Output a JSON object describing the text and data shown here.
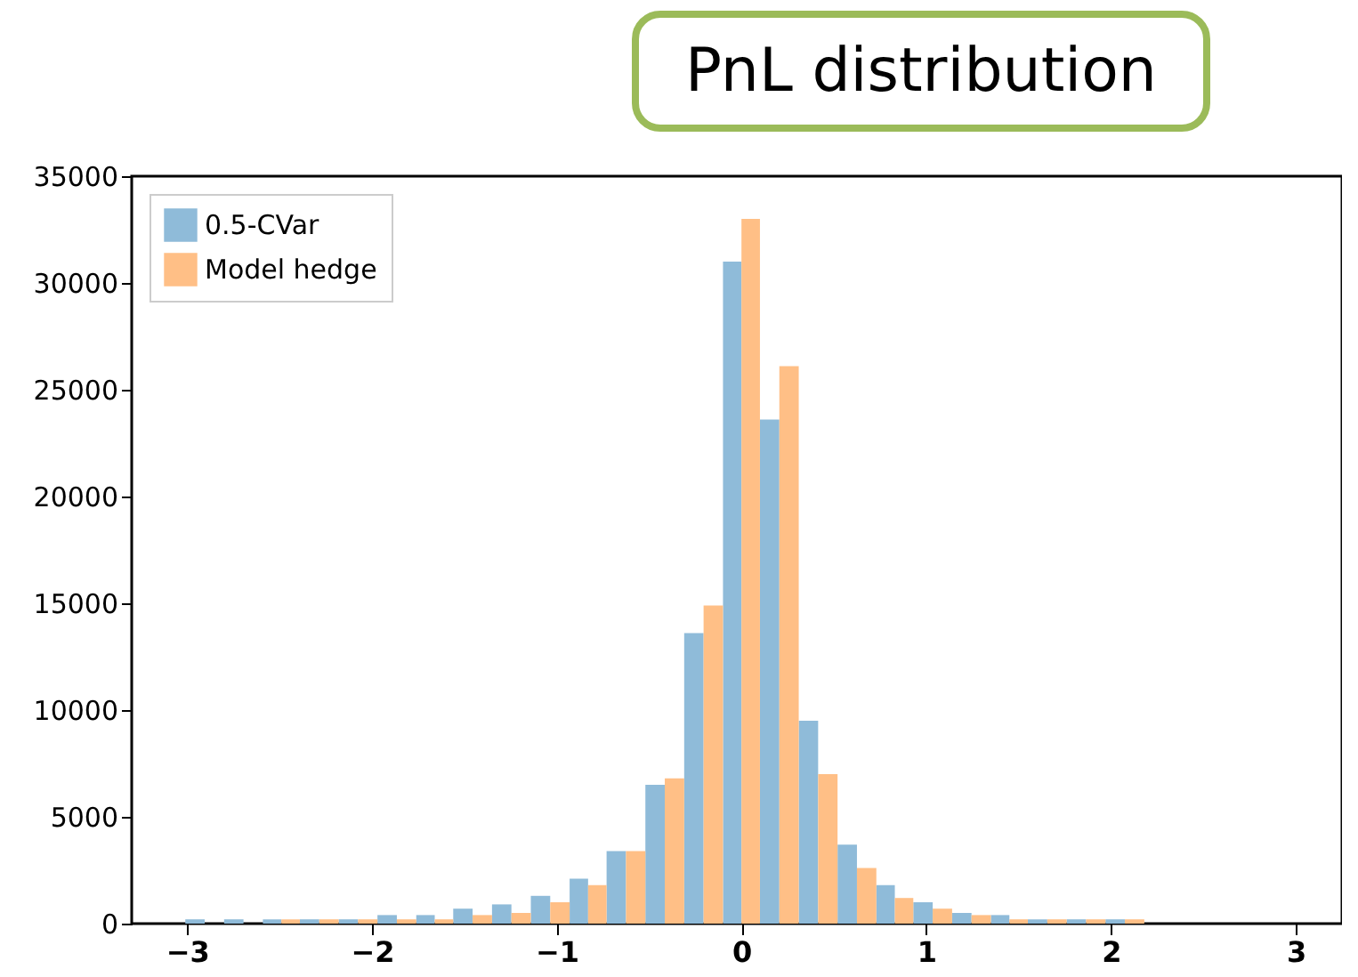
{
  "chart_data": {
    "type": "histogram",
    "title": "PnL distribution",
    "bins": [
      -3.01,
      -2.8,
      -2.59,
      -2.39,
      -2.18,
      -1.97,
      -1.76,
      -1.56,
      -1.35,
      -1.14,
      -0.93,
      -0.73,
      -0.52,
      -0.31,
      -0.1,
      0.1,
      0.31,
      0.52,
      0.73,
      0.93,
      1.14,
      1.35,
      1.55,
      1.76,
      1.97,
      2.18
    ],
    "series": [
      {
        "name": "0.5-CVar",
        "color": "#8fbbd9",
        "values": [
          200,
          200,
          200,
          200,
          200,
          400,
          400,
          700,
          900,
          1300,
          2100,
          3400,
          6500,
          13600,
          31000,
          23600,
          9500,
          3700,
          1800,
          1000,
          500,
          400,
          200,
          200,
          200
        ]
      },
      {
        "name": "Model hedge",
        "color": "#ffbf86",
        "values": [
          0,
          0,
          200,
          200,
          200,
          200,
          200,
          400,
          500,
          1000,
          1800,
          3400,
          6800,
          14900,
          33000,
          26100,
          7000,
          2600,
          1200,
          700,
          400,
          200,
          200,
          200,
          200
        ]
      }
    ],
    "xlim": [
      -3.3,
      3.25
    ],
    "ylim": [
      0,
      35000
    ],
    "xticks": [
      {
        "value": -3,
        "label": "−3"
      },
      {
        "value": -2,
        "label": "−2"
      },
      {
        "value": -1,
        "label": "−1"
      },
      0,
      1,
      2,
      3
    ],
    "yticks": [
      0,
      5000,
      10000,
      15000,
      20000,
      25000,
      30000,
      35000
    ],
    "legend": "top left"
  }
}
